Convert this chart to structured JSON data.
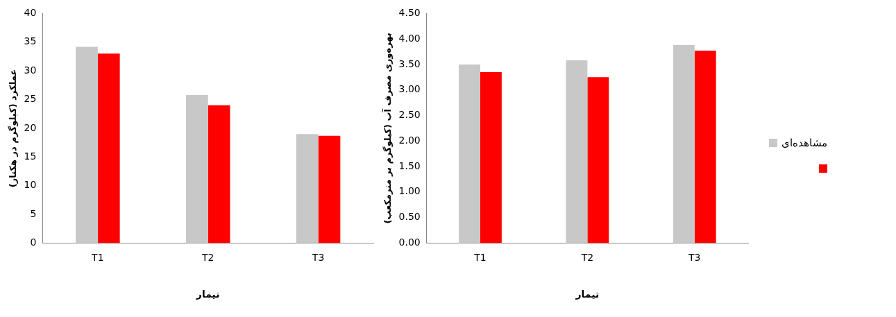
{
  "chart_data": [
    {
      "type": "bar",
      "ylabel": "عملکرد (کیلوگرم در هکتار)",
      "xlabel": "تیمار",
      "categories": [
        "T1",
        "T2",
        "T3"
      ],
      "series": [
        {
          "color": "#c8c8c8",
          "values": [
            34.2,
            25.8,
            19.0
          ]
        },
        {
          "color": "#ff0000",
          "values": [
            33.0,
            24.0,
            18.7
          ]
        }
      ],
      "ylim": [
        0,
        40
      ],
      "yticks": [
        0,
        5,
        10,
        15,
        20,
        25,
        30,
        35,
        40
      ],
      "grid": false,
      "legend": false
    },
    {
      "type": "bar",
      "ylabel": "بهره‌وری مصرف آب (کیلوگرم بر مترمکعب)",
      "xlabel": "تیمار",
      "categories": [
        "T1",
        "T2",
        "T3"
      ],
      "series": [
        {
          "name": "مشاهده‌ای",
          "color": "#c8c8c8",
          "values": [
            3.5,
            3.58,
            3.88
          ]
        },
        {
          "color": "#ff0000",
          "values": [
            3.35,
            3.25,
            3.77
          ]
        }
      ],
      "ylim": [
        0,
        4.5
      ],
      "yticks": [
        {
          "value": 0,
          "label": "0.00"
        },
        {
          "value": 0.5,
          "label": "0.50"
        },
        {
          "value": 1,
          "label": "1.00"
        },
        {
          "value": 1.5,
          "label": "1.50"
        },
        {
          "value": 2,
          "label": "2.00"
        },
        {
          "value": 2.5,
          "label": "2.50"
        },
        {
          "value": 3,
          "label": "3.00"
        },
        {
          "value": 3.5,
          "label": "3.50"
        },
        {
          "value": 4,
          "label": "4.00"
        },
        {
          "value": 4.5,
          "label": "4.50"
        }
      ],
      "grid": false,
      "legend": "right"
    }
  ]
}
